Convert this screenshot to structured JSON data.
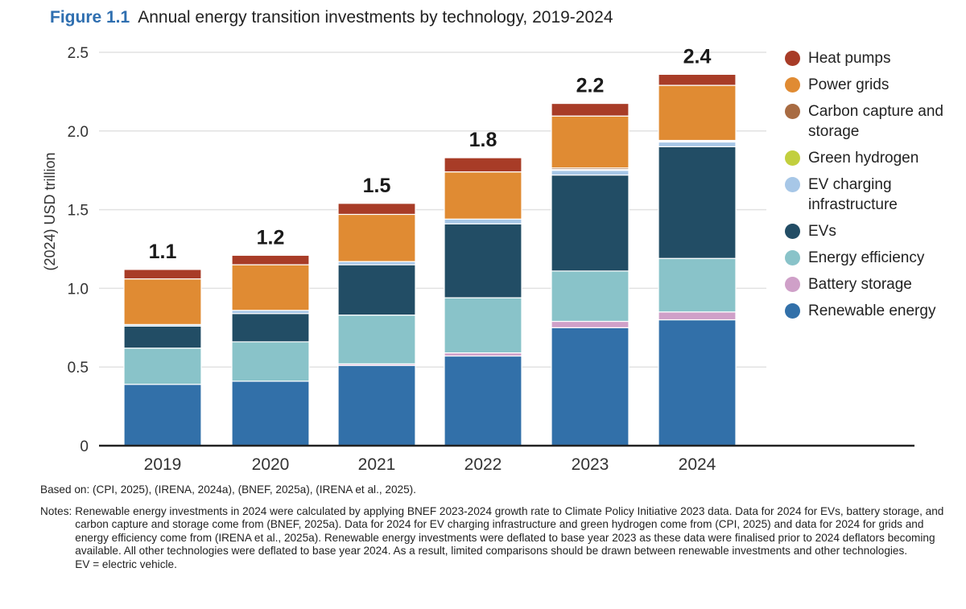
{
  "header": {
    "figure_number": "Figure 1.1",
    "title": "Annual energy transition investments by technology, 2019-2024"
  },
  "chart_data": {
    "type": "bar",
    "stacked": true,
    "title": "Annual energy transition investments by technology, 2019-2024",
    "xlabel": "",
    "ylabel": "(2024) USD trillion",
    "ylim": [
      0,
      2.5
    ],
    "yticks": [
      0,
      0.5,
      1.0,
      1.5,
      2.0,
      2.5
    ],
    "ytick_labels": [
      "0",
      "0.5",
      "1.0",
      "1.5",
      "2.0",
      "2.5"
    ],
    "grid": true,
    "legend_position": "right",
    "categories": [
      "2019",
      "2020",
      "2021",
      "2022",
      "2023",
      "2024"
    ],
    "totals": [
      "1.1",
      "1.2",
      "1.5",
      "1.8",
      "2.2",
      "2.4"
    ],
    "series": [
      {
        "name": "Renewable energy",
        "color": "#3270a9",
        "values": [
          0.39,
          0.41,
          0.51,
          0.57,
          0.75,
          0.8
        ]
      },
      {
        "name": "Battery storage",
        "color": "#cfa0c8",
        "values": [
          0.0,
          0.0,
          0.01,
          0.02,
          0.04,
          0.05
        ]
      },
      {
        "name": "Energy efficiency",
        "color": "#89c3c9",
        "values": [
          0.23,
          0.25,
          0.31,
          0.35,
          0.32,
          0.34
        ]
      },
      {
        "name": "EVs",
        "color": "#224d65",
        "values": [
          0.14,
          0.18,
          0.32,
          0.47,
          0.61,
          0.71
        ]
      },
      {
        "name": "EV charging infrastructure",
        "color": "#a7c7e7",
        "values": [
          0.01,
          0.02,
          0.02,
          0.03,
          0.03,
          0.03
        ]
      },
      {
        "name": "Green hydrogen",
        "color": "#c2cf3e",
        "values": [
          0.0,
          0.0,
          0.0,
          0.0,
          0.005,
          0.005
        ]
      },
      {
        "name": "Carbon capture and storage",
        "color": "#a86b42",
        "values": [
          0.0,
          0.0,
          0.0,
          0.0,
          0.01,
          0.005
        ]
      },
      {
        "name": "Power grids",
        "color": "#e08b33",
        "values": [
          0.29,
          0.29,
          0.3,
          0.3,
          0.33,
          0.35
        ]
      },
      {
        "name": "Heat pumps",
        "color": "#a83c27",
        "values": [
          0.06,
          0.06,
          0.07,
          0.09,
          0.08,
          0.07
        ]
      }
    ]
  },
  "legend": [
    {
      "label": "Heat pumps",
      "color": "#a83c27"
    },
    {
      "label": "Power grids",
      "color": "#e08b33"
    },
    {
      "label": "Carbon capture and storage",
      "color": "#a86b42"
    },
    {
      "label": "Green hydrogen",
      "color": "#c2cf3e"
    },
    {
      "label": "EV charging infrastructure",
      "color": "#a7c7e7"
    },
    {
      "label": "EVs",
      "color": "#224d65"
    },
    {
      "label": "Energy efficiency",
      "color": "#89c3c9"
    },
    {
      "label": "Battery storage",
      "color": "#cfa0c8"
    },
    {
      "label": "Renewable energy",
      "color": "#3270a9"
    }
  ],
  "footer": {
    "source": "Based on: (CPI, 2025), (IRENA, 2024a), (BNEF, 2025a), (IRENA et al., 2025).",
    "notes_label": "Notes:",
    "notes_text": "Renewable energy investments in 2024 were calculated by applying BNEF 2023-2024 growth rate to Climate Policy Initiative 2023 data. Data for 2024 for EVs, battery storage, and carbon capture and storage come from (BNEF, 2025a). Data for 2024 for EV charging infrastructure and green hydrogen come from (CPI, 2025) and data for 2024 for grids and energy efficiency come from (IRENA et al., 2025a). Renewable energy investments were deflated to base year 2023 as these data were finalised prior to 2024 deflators becoming available. All other technologies were deflated to base year 2024. As a result, limited comparisons should be drawn between renewable investments and other technologies.",
    "abbreviation": "EV = electric vehicle."
  }
}
